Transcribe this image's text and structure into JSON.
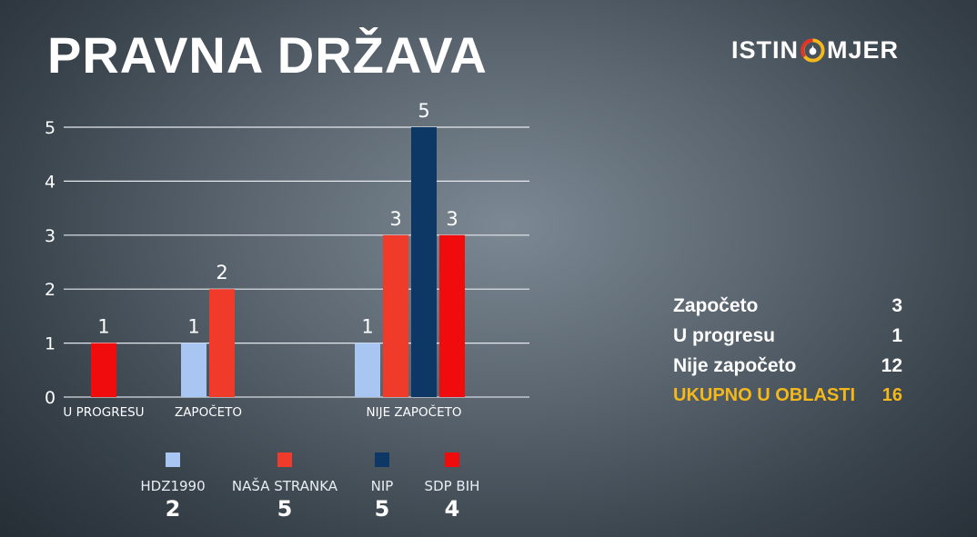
{
  "title": "PRAVNA DRŽAVA",
  "logo": {
    "left": "ISTIN",
    "right": "MJER",
    "icon": "gauge-icon"
  },
  "chart_data": {
    "type": "bar",
    "categories": [
      "U PROGRESU",
      "ZAPOČETO",
      "NIJE ZAPOČETO"
    ],
    "series": [
      {
        "name": "HDZ1990",
        "color": "#a9c5f2",
        "values": [
          0,
          1,
          1
        ]
      },
      {
        "name": "NAŠA STRANKA",
        "color": "#f03a2a",
        "values": [
          0,
          2,
          3
        ]
      },
      {
        "name": "NIP",
        "color": "#0d3866",
        "values": [
          0,
          0,
          5
        ]
      },
      {
        "name": "SDP BIH",
        "color": "#f00c0c",
        "values": [
          1,
          0,
          3
        ]
      }
    ],
    "yticks": [
      0,
      1,
      2,
      3,
      4,
      5
    ],
    "ylim": [
      0,
      5
    ],
    "grid": true,
    "legend": "bottom"
  },
  "legend_counts": [
    "2",
    "5",
    "5",
    "4"
  ],
  "summary": {
    "rows": [
      {
        "label": "Započeto",
        "value": "3"
      },
      {
        "label": "U progresu",
        "value": "1"
      },
      {
        "label": "Nije započeto",
        "value": "12"
      }
    ],
    "total": {
      "label": "UKUPNO U OBLASTI",
      "value": "16"
    }
  },
  "colors": {
    "accent": "#f5b81b",
    "grid": "#e6eaee"
  }
}
